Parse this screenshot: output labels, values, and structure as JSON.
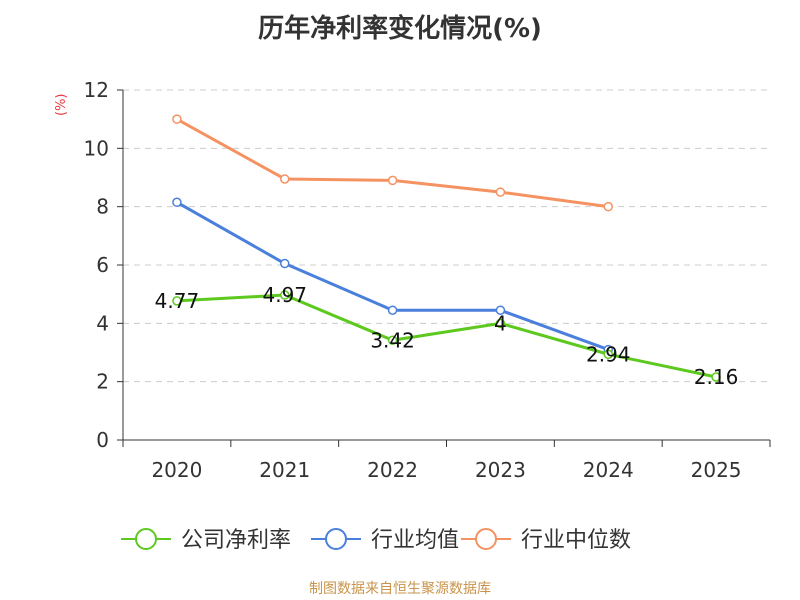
{
  "title": "历年净利率变化情况(%)",
  "y_unit": "(%)",
  "source": "制图数据来自恒生聚源数据库",
  "chart_data": {
    "type": "line",
    "title": "历年净利率变化情况(%)",
    "xlabel": "",
    "ylabel": "(%)",
    "categories": [
      "2020",
      "2021",
      "2022",
      "2023",
      "2024",
      "2025"
    ],
    "ylim": [
      0,
      12
    ],
    "yticks": [
      0,
      2,
      4,
      6,
      8,
      10,
      12
    ],
    "grid": true,
    "legend_position": "bottom",
    "series": [
      {
        "name": "公司净利率",
        "color": "#5dc91f",
        "values": [
          4.77,
          4.97,
          3.42,
          4,
          2.94,
          2.16
        ],
        "labels": [
          "4.77",
          "4.97",
          "3.42",
          "4",
          "2.94",
          "2.16"
        ]
      },
      {
        "name": "行业均值",
        "color": "#4a7fdc",
        "values": [
          8.15,
          6.05,
          4.45,
          4.45,
          3.1,
          null
        ]
      },
      {
        "name": "行业中位数",
        "color": "#f59261",
        "values": [
          11.0,
          8.95,
          8.9,
          8.5,
          8.0,
          null
        ]
      }
    ]
  }
}
